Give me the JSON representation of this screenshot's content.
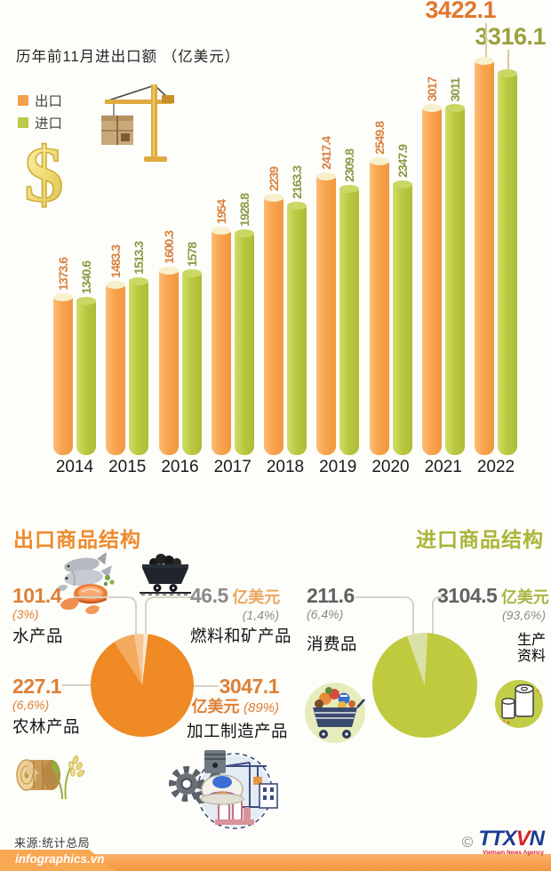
{
  "chart_data": [
    {
      "type": "bar",
      "title": "历年前11月进出口额 （亿美元）",
      "categories": [
        "2014",
        "2015",
        "2016",
        "2017",
        "2018",
        "2019",
        "2020",
        "2021",
        "2022"
      ],
      "series": [
        {
          "name": "出口",
          "color": "#f5a04c",
          "label_color": "#d9813f",
          "values": [
            1373.6,
            1483.3,
            1600.3,
            1954,
            2239,
            2417.4,
            2549.8,
            3017,
            3422.1
          ]
        },
        {
          "name": "进口",
          "color": "#bdca45",
          "label_color": "#8f9844",
          "values": [
            1340.6,
            1513.3,
            1578,
            1928.8,
            2163.3,
            2309.8,
            2347.9,
            3011,
            3316.1
          ]
        }
      ],
      "ylim": [
        0,
        3500
      ],
      "grid": false,
      "legend_position": "top-left"
    },
    {
      "type": "pie",
      "title": "出口商品结构",
      "start_angle": -33,
      "slices": [
        {
          "label": "农林产品",
          "value": 227.1,
          "pct": "(6,6%)",
          "pct_num": 6.6,
          "color": "#f4aa5c"
        },
        {
          "label": "水产品",
          "value": 101.4,
          "pct": "(3%)",
          "pct_num": 3,
          "color": "#f6c795"
        },
        {
          "label": "燃料和矿产品",
          "value": 46.5,
          "pct": "(1,4%)",
          "pct_num": 1.4,
          "color": "#fae8cf",
          "unit": "亿美元"
        },
        {
          "label": "加工制造产品",
          "value": 3047.1,
          "pct": "(89%)",
          "pct_num": 89,
          "color": "#ef8a24",
          "unit": "亿美元"
        }
      ]
    },
    {
      "type": "pie",
      "title": "进口商品结构",
      "start_angle": -20,
      "slices": [
        {
          "label": "消费品",
          "value": 211.6,
          "pct": "(6,4%)",
          "pct_num": 6.4,
          "color": "#dae1a6"
        },
        {
          "label": "生产资料",
          "value": 3104.5,
          "pct": "(93,6%)",
          "pct_num": 93.6,
          "color": "#bfca3e",
          "unit": "亿美元"
        }
      ]
    }
  ],
  "footer": {
    "source": "来源:统计总局",
    "site": "infographics.vn",
    "copyright": "©",
    "agency_prefix": "TTX",
    "agency_v": "V",
    "agency_n": "N",
    "agency_subtitle": "Vietnam News Agency"
  },
  "icons": {
    "dollar": "gold-dollar-sign",
    "crane": "construction-crane-lifting-cargo-box",
    "seafood": "fish-shrimp-salmon",
    "coal_cart": "coal-mine-cart",
    "wood_rice": "wood-log-and-rice-stalks",
    "machinery": "gears-helmet-construction-site",
    "shopping_cart": "grocery-filled-cart",
    "paper_roll": "paper-rolls-badge"
  }
}
